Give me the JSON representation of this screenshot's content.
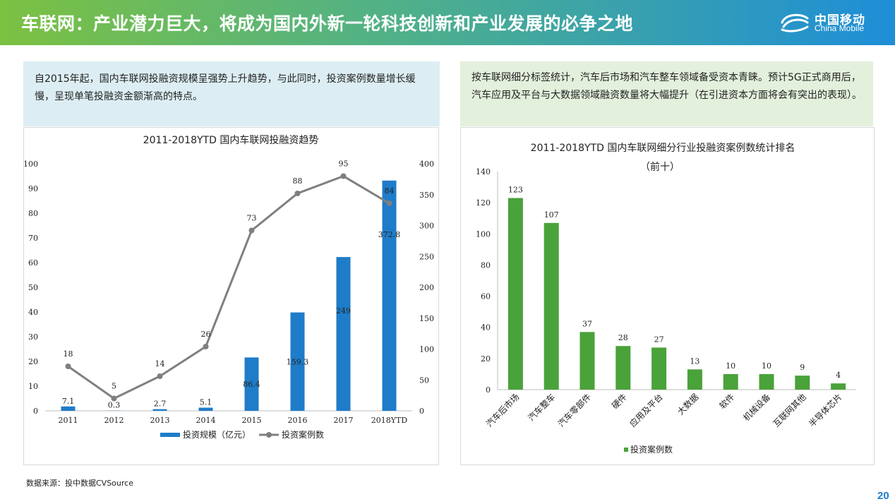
{
  "header": {
    "title": "车联网：产业潜力巨大，将成为国内外新一轮科技创新和产业发展的必争之地"
  },
  "logo": {
    "cn": "中国移动",
    "en": "China Mobile"
  },
  "notes": {
    "left": "自2015年起，国内车联网投融资规模呈强势上升趋势，与此同时，投资案例数量增长缓慢，呈现单笔投融资金额渐高的特点。",
    "right": "按车联网细分标签统计，汽车后市场和汽车整车领域备受资本青睐。预计5G正式商用后，汽车应用及平台与大数据领域融资数量将大幅提升（在引进资本方面将会有突出的表现）。"
  },
  "source": "数据来源：投中数据CVSource",
  "page_number": "20",
  "colors": {
    "bar_blue": "#1f7cc9",
    "line_gray": "#7f7f7f",
    "bar_green": "#4aa23a",
    "header_start": "#7cc142",
    "header_end": "#1e8ed8"
  },
  "chart_data": [
    {
      "type": "bar+line",
      "title": "2011-2018YTD 国内车联网投融资趋势",
      "categories": [
        "2011",
        "2012",
        "2013",
        "2014",
        "2015",
        "2016",
        "2017",
        "2018YTD"
      ],
      "series": [
        {
          "name": "投资规模（亿元）",
          "type": "bar",
          "axis": "right",
          "values": [
            7.1,
            0.3,
            2.7,
            5.1,
            86.4,
            159.3,
            249,
            372.8
          ],
          "labels": [
            "7.1",
            "0.3",
            "2.7",
            "5.1",
            "86.4",
            "159.3",
            "249",
            "372.8"
          ]
        },
        {
          "name": "投资案例数",
          "type": "line",
          "axis": "left",
          "values": [
            18,
            5,
            14,
            26,
            73,
            88,
            95,
            84
          ],
          "labels": [
            "18",
            "5",
            "14",
            "26",
            "73",
            "88",
            "95",
            "84"
          ]
        }
      ],
      "left_axis": {
        "range": [
          0,
          100
        ],
        "ticks": [
          "0",
          "10",
          "20",
          "30",
          "40",
          "50",
          "60",
          "70",
          "80",
          "90",
          "100"
        ]
      },
      "right_axis": {
        "range": [
          0,
          400
        ],
        "ticks": [
          "0",
          "50",
          "100",
          "150",
          "200",
          "250",
          "300",
          "350",
          "400"
        ]
      },
      "legend": "bottom"
    },
    {
      "type": "bar",
      "title": "2011-2018YTD 国内车联网细分行业投融资案例数统计排名",
      "subtitle": "（前十）",
      "categories": [
        "汽车后市场",
        "汽车整车",
        "汽车零部件",
        "硬件",
        "应用及平台",
        "大数据",
        "软件",
        "机械设备",
        "互联网其他",
        "半导体芯片"
      ],
      "series": [
        {
          "name": "投资案例数",
          "values": [
            123,
            107,
            37,
            28,
            27,
            13,
            10,
            10,
            9,
            4
          ],
          "labels": [
            "123",
            "107",
            "37",
            "28",
            "27",
            "13",
            "10",
            "10",
            "9",
            "4"
          ]
        }
      ],
      "y_axis": {
        "range": [
          0,
          140
        ],
        "ticks": [
          "0",
          "20",
          "40",
          "60",
          "80",
          "100",
          "120",
          "140"
        ]
      },
      "legend": "bottom"
    }
  ]
}
